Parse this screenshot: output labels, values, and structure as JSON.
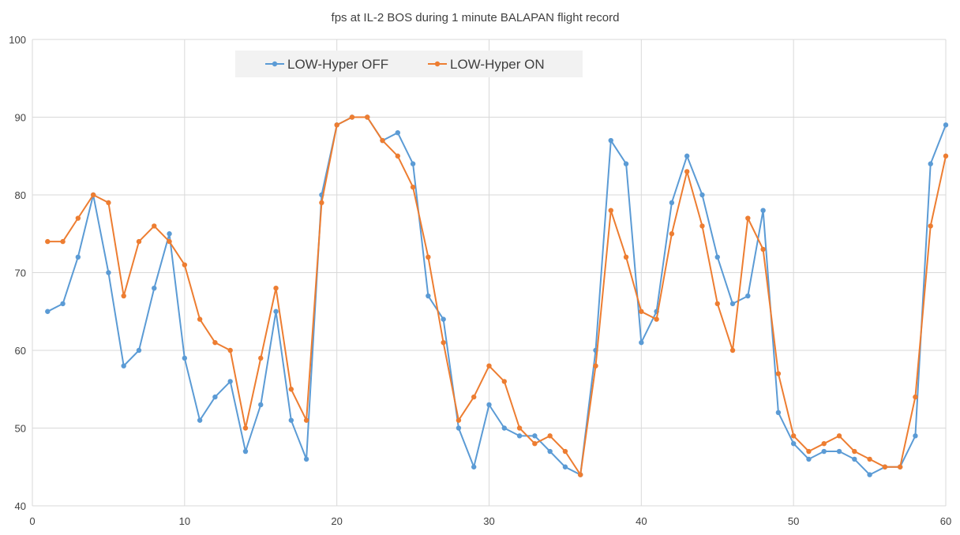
{
  "chart_data": {
    "type": "line",
    "title": "fps at IL-2 BOS during 1 minute BALAPAN flight record",
    "xlabel": "",
    "ylabel": "",
    "xlim": [
      0,
      60
    ],
    "ylim": [
      40,
      100
    ],
    "x_ticks": [
      0,
      10,
      20,
      30,
      40,
      50,
      60
    ],
    "y_ticks": [
      40,
      50,
      60,
      70,
      80,
      90,
      100
    ],
    "grid": true,
    "legend_position": "top-center",
    "x": [
      1,
      2,
      3,
      4,
      5,
      6,
      7,
      8,
      9,
      10,
      11,
      12,
      13,
      14,
      15,
      16,
      17,
      18,
      19,
      20,
      21,
      22,
      23,
      24,
      25,
      26,
      27,
      28,
      29,
      30,
      31,
      32,
      33,
      34,
      35,
      36,
      37,
      38,
      39,
      40,
      41,
      42,
      43,
      44,
      45,
      46,
      47,
      48,
      49,
      50,
      51,
      52,
      53,
      54,
      55,
      56,
      57,
      58,
      59,
      60
    ],
    "series": [
      {
        "name": "LOW-Hyper OFF",
        "color": "#5b9bd5",
        "values": [
          65,
          66,
          72,
          80,
          70,
          58,
          60,
          68,
          75,
          59,
          51,
          54,
          56,
          47,
          53,
          65,
          51,
          46,
          80,
          89,
          90,
          90,
          87,
          88,
          84,
          67,
          64,
          50,
          45,
          53,
          50,
          49,
          49,
          47,
          45,
          44,
          60,
          87,
          84,
          61,
          65,
          79,
          85,
          80,
          72,
          66,
          67,
          78,
          52,
          48,
          46,
          47,
          47,
          46,
          44,
          45,
          45,
          49,
          84,
          89
        ]
      },
      {
        "name": "LOW-Hyper ON",
        "color": "#ed7d31",
        "values": [
          74,
          74,
          77,
          80,
          79,
          67,
          74,
          76,
          74,
          71,
          64,
          61,
          60,
          50,
          59,
          68,
          55,
          51,
          79,
          89,
          90,
          90,
          87,
          85,
          81,
          72,
          61,
          51,
          54,
          58,
          56,
          50,
          48,
          49,
          47,
          44,
          58,
          78,
          72,
          65,
          64,
          75,
          83,
          76,
          66,
          60,
          77,
          73,
          57,
          49,
          47,
          48,
          49,
          47,
          46,
          45,
          45,
          54,
          76,
          85
        ]
      }
    ]
  }
}
